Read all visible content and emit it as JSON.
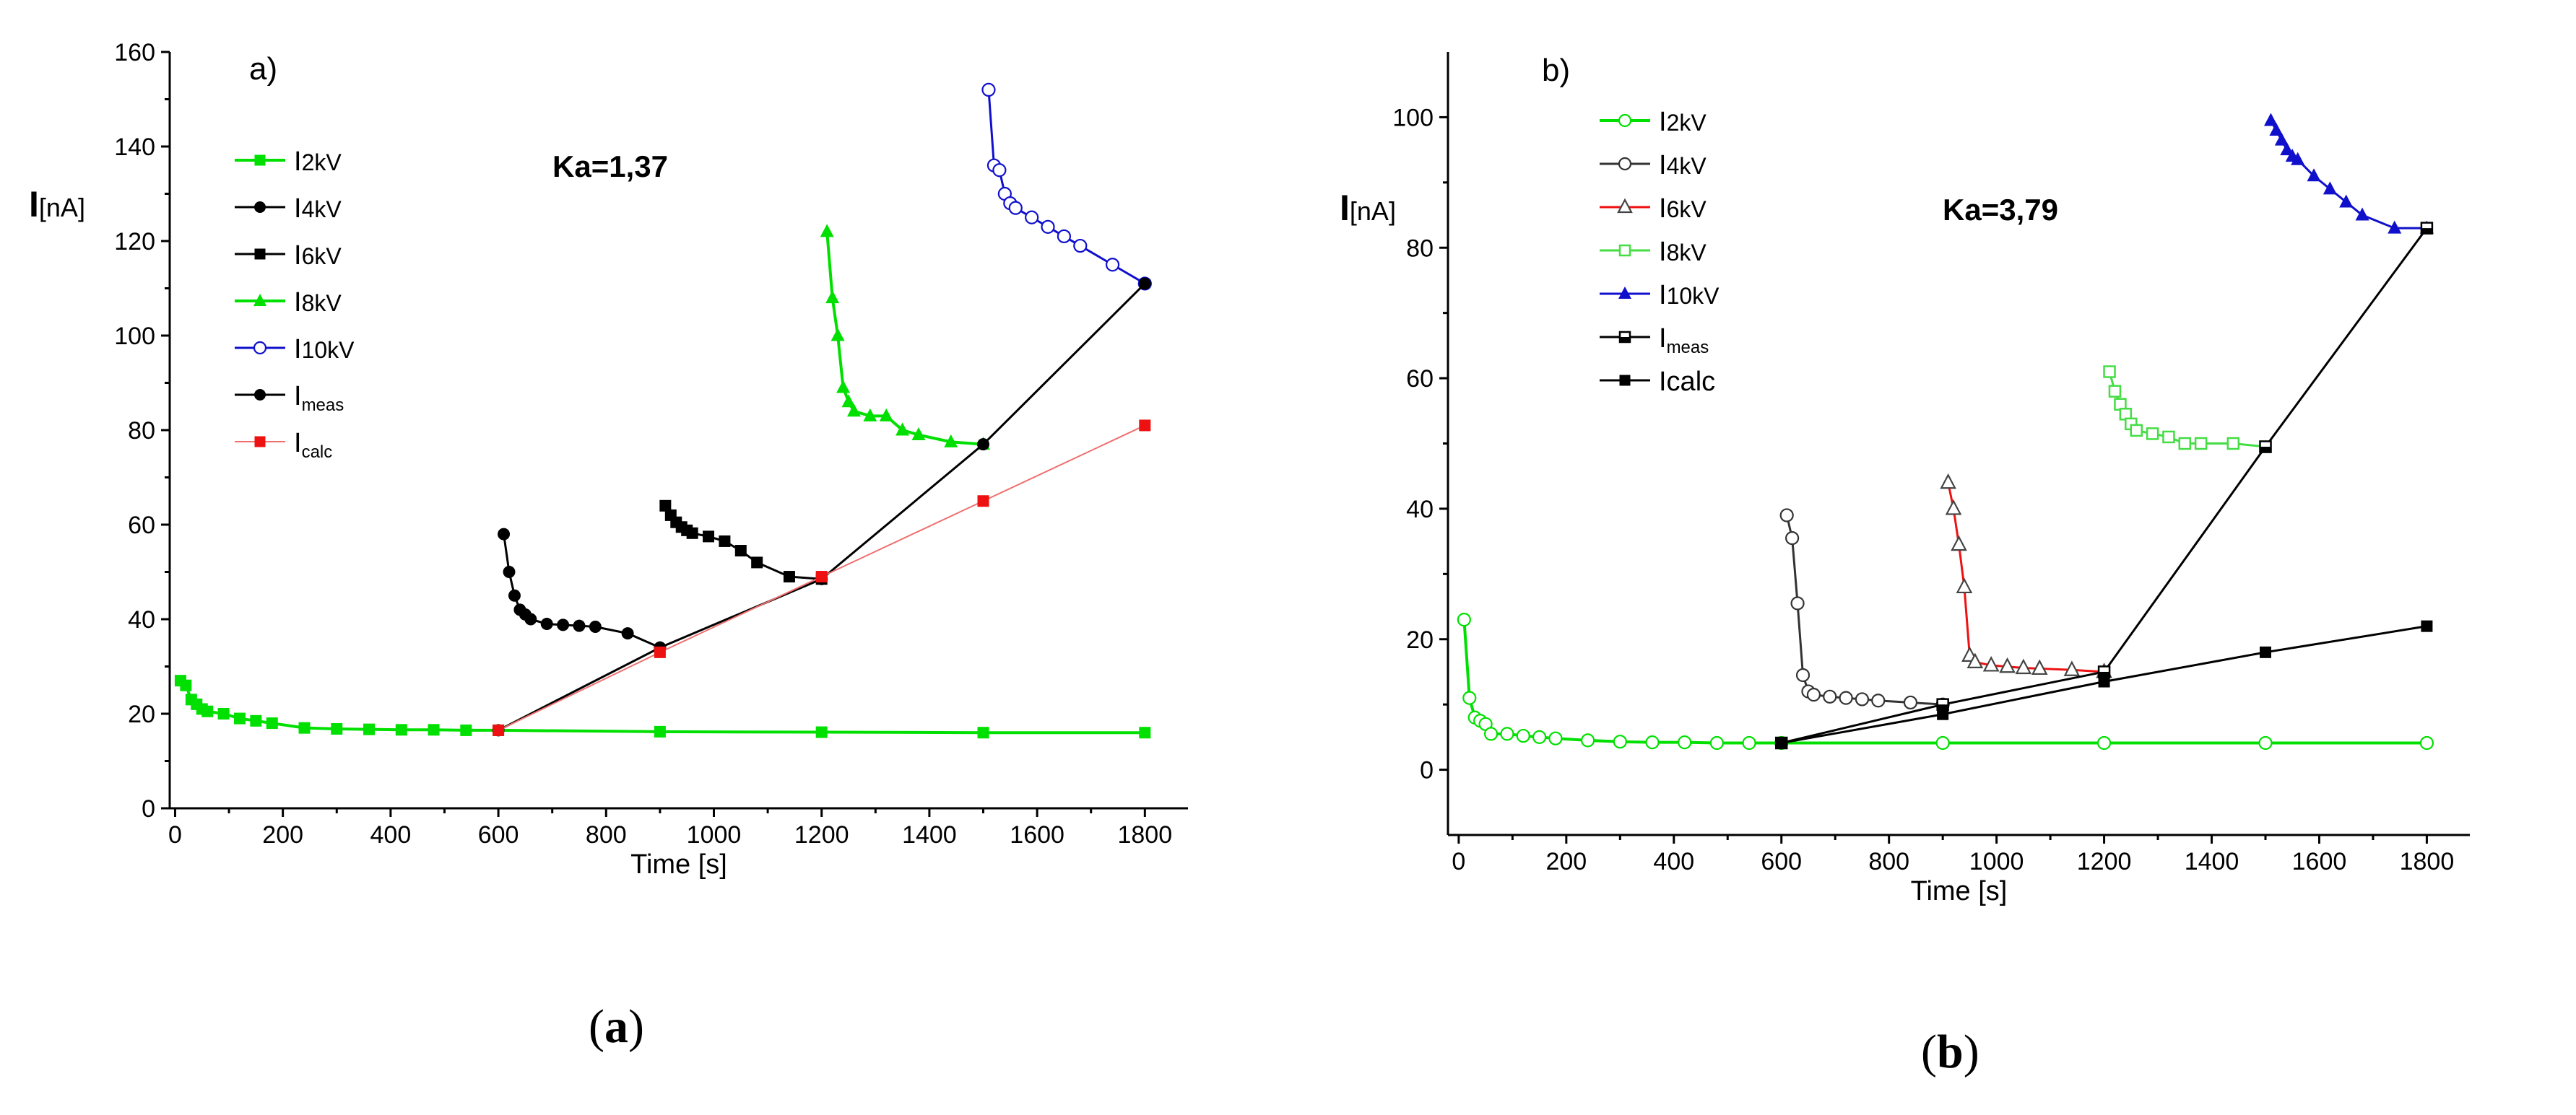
{
  "colors": {
    "green": "#00e000",
    "black": "#000000",
    "red": "#ee1111",
    "blue": "#1010cc",
    "lightblue": "#6070dd",
    "pink": "#f07070",
    "lightgreen": "#44dd44",
    "darkgray": "#333333"
  },
  "captions": {
    "a_open": "(",
    "a_letter": "a",
    "a_close": ")",
    "b_open": "(",
    "b_letter": "b",
    "b_close": ")"
  },
  "chart_data": [
    {
      "type": "line",
      "panel_label": "a)",
      "annotation": "Ka=1,37",
      "xlabel": "Time [s]",
      "ylabel_main": "I",
      "ylabel_unit": "[nA]",
      "xlim": [
        -10,
        1880
      ],
      "ylim": [
        0,
        160
      ],
      "xticks": [
        0,
        200,
        400,
        600,
        800,
        1000,
        1200,
        1400,
        1600,
        1800
      ],
      "yticks": [
        0,
        20,
        40,
        60,
        80,
        100,
        120,
        140,
        160
      ],
      "series": [
        {
          "name": "I2kV",
          "label_main": "I",
          "label_sub": "2kV",
          "color": "#00e000",
          "marker": "square-filled",
          "width": 4,
          "x": [
            10,
            20,
            30,
            40,
            50,
            60,
            90,
            120,
            150,
            180,
            240,
            300,
            360,
            420,
            480,
            540,
            600,
            900,
            1200,
            1500,
            1800
          ],
          "y": [
            27,
            26,
            23,
            22,
            21,
            20.5,
            20,
            19,
            18.5,
            18,
            17,
            16.8,
            16.7,
            16.6,
            16.6,
            16.5,
            16.5,
            16.2,
            16.1,
            16.0,
            16.0
          ]
        },
        {
          "name": "I4kV",
          "label_main": "I",
          "label_sub": "4kV",
          "color": "#000000",
          "marker": "circle-filled",
          "width": 3,
          "x": [
            610,
            620,
            630,
            640,
            650,
            660,
            690,
            720,
            750,
            780,
            840,
            900
          ],
          "y": [
            58,
            50,
            45,
            42,
            41,
            40,
            39,
            38.8,
            38.6,
            38.4,
            37,
            34
          ]
        },
        {
          "name": "I6kV",
          "label_main": "I",
          "label_sub": "6kV",
          "color": "#000000",
          "marker": "square-filled",
          "width": 3,
          "x": [
            910,
            920,
            930,
            940,
            950,
            960,
            990,
            1020,
            1050,
            1080,
            1140,
            1200
          ],
          "y": [
            64,
            62,
            60.5,
            59.5,
            58.8,
            58.2,
            57.5,
            56.5,
            54.5,
            52,
            49,
            48.5
          ]
        },
        {
          "name": "I8kV",
          "label_main": "I",
          "label_sub": "8kV",
          "color": "#00e000",
          "marker": "triangle-filled",
          "width": 4,
          "x": [
            1210,
            1220,
            1230,
            1240,
            1250,
            1260,
            1290,
            1320,
            1350,
            1380,
            1440,
            1500
          ],
          "y": [
            122,
            108,
            100,
            89,
            86,
            84,
            83,
            83,
            80,
            79,
            77.5,
            77
          ]
        },
        {
          "name": "I10kV",
          "label_main": "I",
          "label_sub": "10kV",
          "color": "#1010cc",
          "marker": "circle-open",
          "width": 3,
          "x": [
            1510,
            1520,
            1530,
            1540,
            1550,
            1560,
            1590,
            1620,
            1650,
            1680,
            1740,
            1800
          ],
          "y": [
            152,
            136,
            135,
            130,
            128,
            127,
            125,
            123,
            121,
            119,
            115,
            111
          ]
        },
        {
          "name": "Imeas",
          "label_main": "I",
          "label_sub": "meas",
          "color": "#000000",
          "marker": "circle-filled",
          "width": 3,
          "x": [
            600,
            900,
            1200,
            1500,
            1800
          ],
          "y": [
            16.5,
            34,
            48.5,
            77,
            111
          ]
        },
        {
          "name": "Icalc",
          "label_main": "I",
          "label_sub": "calc",
          "color": "#f07070",
          "marker": "square-red",
          "width": 2,
          "x": [
            600,
            900,
            1200,
            1500,
            1800
          ],
          "y": [
            16.5,
            33,
            49,
            65,
            81
          ]
        }
      ]
    },
    {
      "type": "line",
      "panel_label": "b)",
      "annotation": "Ka=3,79",
      "xlabel": "Time [s]",
      "ylabel_main": "I",
      "ylabel_unit": "[nA]",
      "xlim": [
        -20,
        1880
      ],
      "ylim": [
        -10,
        110
      ],
      "xticks": [
        0,
        200,
        400,
        600,
        800,
        1000,
        1200,
        1400,
        1600,
        1800
      ],
      "yticks": [
        0,
        20,
        40,
        60,
        80,
        100
      ],
      "series": [
        {
          "name": "I2kV",
          "label_main": "I",
          "label_sub": "2kV",
          "color": "#00e000",
          "marker": "circle-open",
          "width": 4,
          "x": [
            10,
            20,
            30,
            40,
            50,
            60,
            90,
            120,
            150,
            180,
            240,
            300,
            360,
            420,
            480,
            540,
            600,
            900,
            1200,
            1500,
            1800
          ],
          "y": [
            23,
            11,
            8,
            7.5,
            7,
            5.5,
            5.5,
            5.2,
            5,
            4.8,
            4.5,
            4.3,
            4.2,
            4.2,
            4.1,
            4.1,
            4.1,
            4.1,
            4.1,
            4.1,
            4.1
          ]
        },
        {
          "name": "I4kV",
          "label_main": "I",
          "label_sub": "4kV",
          "color": "#333333",
          "marker": "circle-open",
          "width": 3,
          "x": [
            610,
            620,
            630,
            640,
            650,
            660,
            690,
            720,
            750,
            780,
            840,
            900
          ],
          "y": [
            39,
            35.5,
            25.5,
            14.5,
            12,
            11.5,
            11.2,
            11,
            10.8,
            10.6,
            10.3,
            10
          ]
        },
        {
          "name": "I6kV",
          "label_main": "I",
          "label_sub": "6kV",
          "color": "#ee1111",
          "marker": "triangle-open",
          "width": 3,
          "x": [
            910,
            920,
            930,
            940,
            950,
            960,
            990,
            1020,
            1050,
            1080,
            1140,
            1200
          ],
          "y": [
            44,
            40,
            34.5,
            28,
            17.5,
            16.5,
            16,
            15.8,
            15.6,
            15.5,
            15.3,
            15
          ]
        },
        {
          "name": "I8kV",
          "label_main": "I",
          "label_sub": "8kV",
          "color": "#44dd44",
          "marker": "square-open",
          "width": 3,
          "x": [
            1210,
            1220,
            1230,
            1240,
            1250,
            1260,
            1290,
            1320,
            1350,
            1380,
            1440,
            1500
          ],
          "y": [
            61,
            58,
            56,
            54.5,
            53,
            52,
            51.5,
            51,
            50,
            50,
            50,
            49.5
          ]
        },
        {
          "name": "I10kV",
          "label_main": "I",
          "label_sub": "10kV",
          "color": "#1010cc",
          "marker": "triangle-filled",
          "width": 3,
          "x": [
            1510,
            1520,
            1530,
            1540,
            1550,
            1560,
            1590,
            1620,
            1650,
            1680,
            1740,
            1800
          ],
          "y": [
            99.5,
            98,
            96.5,
            95,
            94,
            93.5,
            91,
            89,
            87,
            85,
            83,
            83
          ]
        },
        {
          "name": "Imeas",
          "label_main": "I",
          "label_sub": "meas",
          "color": "#000000",
          "marker": "square-half",
          "width": 3,
          "x": [
            600,
            900,
            1200,
            1500,
            1800
          ],
          "y": [
            4.1,
            10,
            15,
            49.5,
            83
          ]
        },
        {
          "name": "Icalc",
          "label_main": "Icalc",
          "label_sub": "",
          "color": "#000000",
          "marker": "square-filled",
          "width": 3,
          "x": [
            600,
            900,
            1200,
            1500,
            1800
          ],
          "y": [
            4.1,
            8.5,
            13.5,
            18,
            22
          ]
        }
      ]
    }
  ]
}
